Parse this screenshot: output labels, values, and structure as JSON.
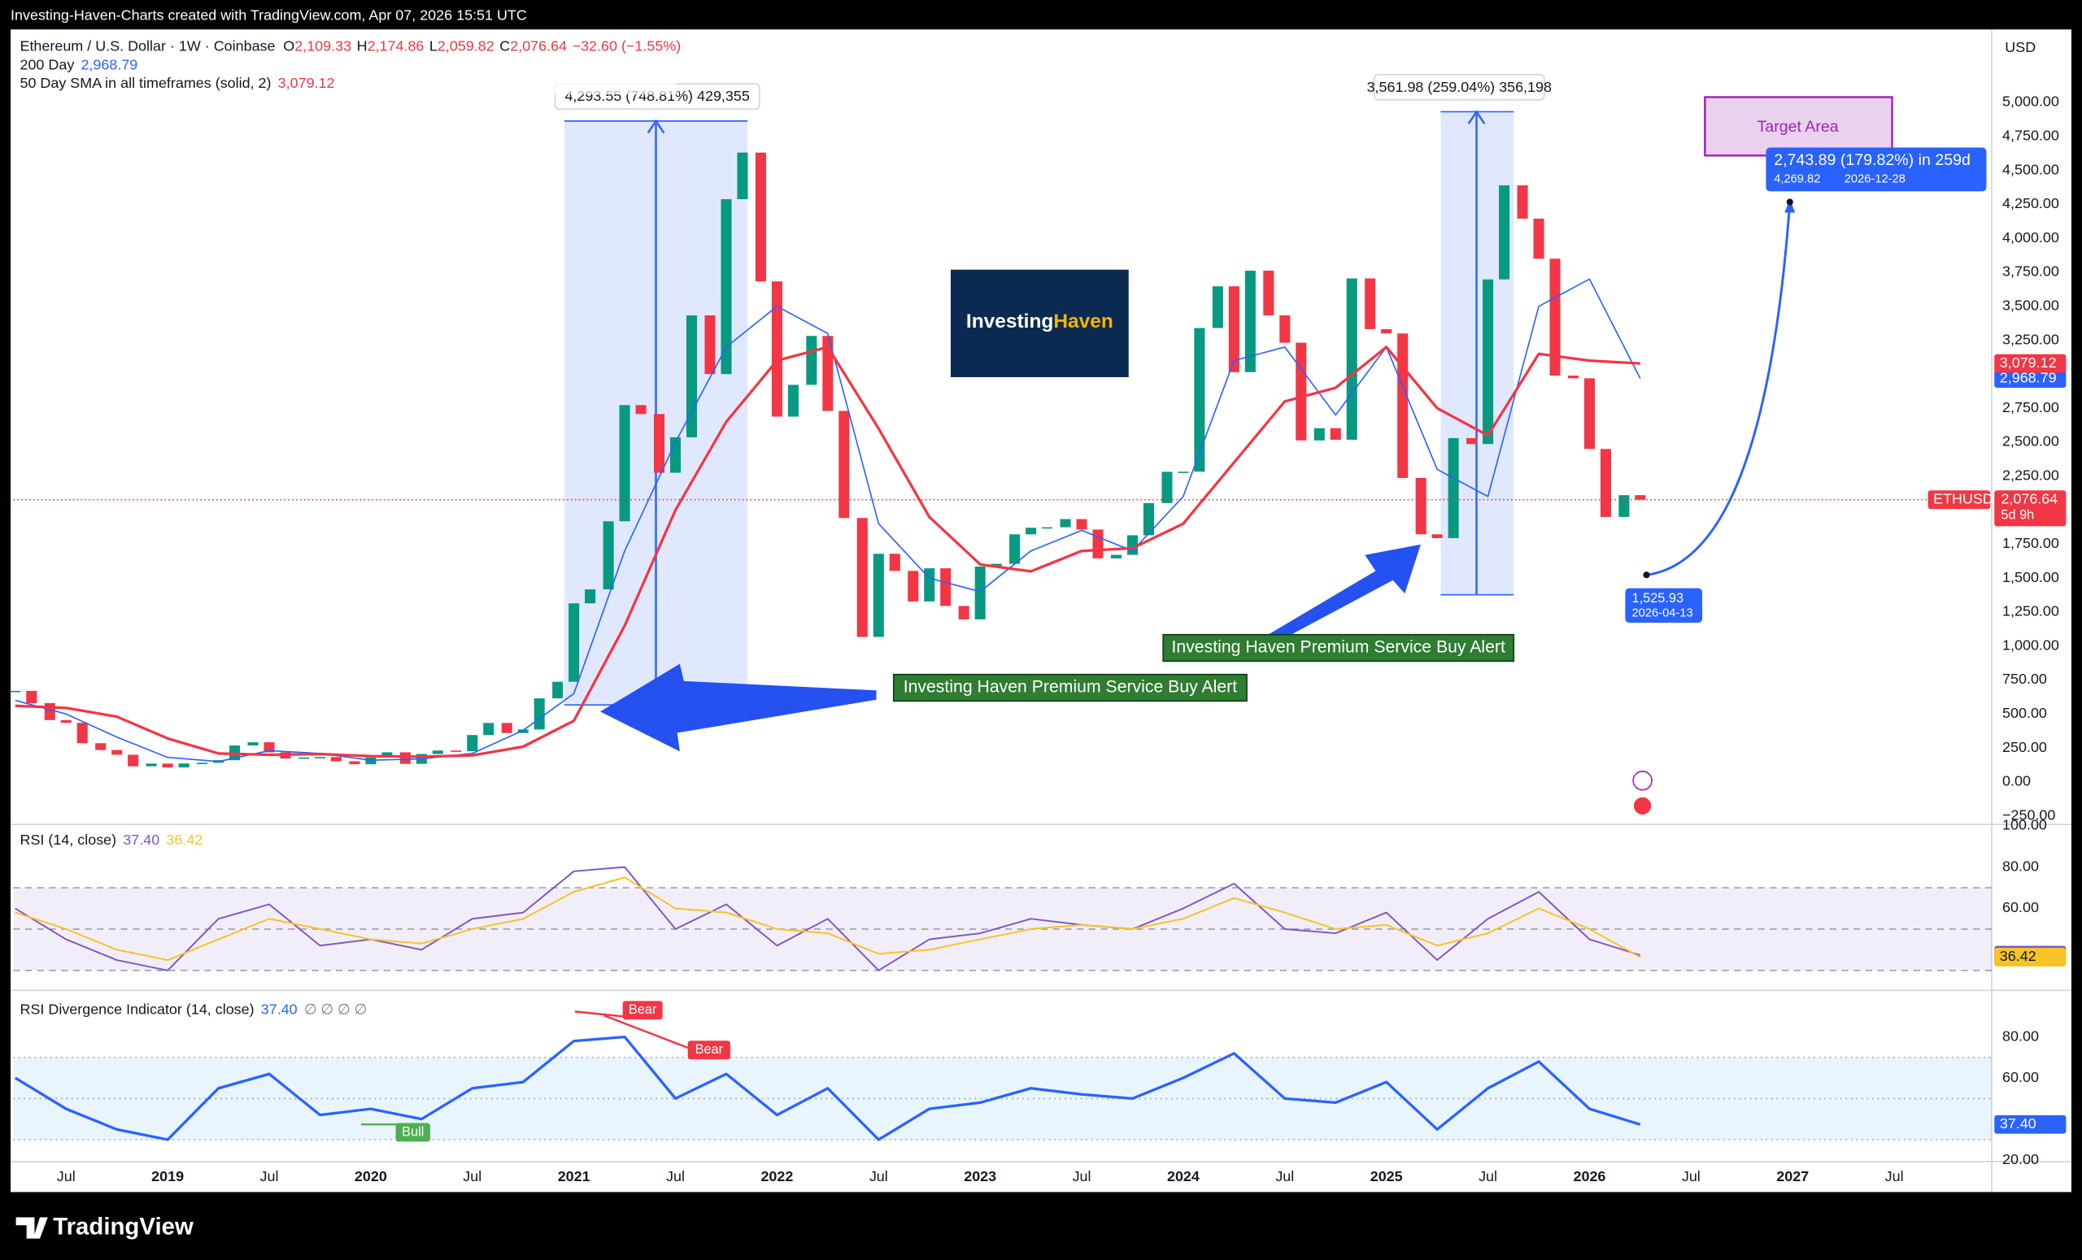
{
  "header": {
    "attribution": "Investing-Haven-Charts created with TradingView.com, Apr 07, 2026 15:51 UTC",
    "brand": "TradingView",
    "logo_1": "Investing",
    "logo_2": "Haven"
  },
  "chart_data": [
    {
      "type": "candle",
      "title": "Ethereum / U.S. Dollar · 1W · Coinbase",
      "open_label": "O",
      "open": "2,109.33",
      "high_label": "H",
      "high": "2,174.86",
      "low_label": "L",
      "low": "2,059.82",
      "close_label": "C",
      "close": "2,076.64",
      "change": "−32.60 (−1.55%)",
      "currency": "USD",
      "xlim": [
        2018.24,
        2027.98
      ],
      "xticks": [
        {
          "value": 2018.5,
          "label": "Jul"
        },
        2019,
        {
          "value": 2019.5,
          "label": "Jul"
        },
        2020,
        {
          "value": 2020.5,
          "label": "Jul"
        },
        2021,
        {
          "value": 2021.5,
          "label": "Jul"
        },
        2022,
        {
          "value": 2022.5,
          "label": "Jul"
        },
        2023,
        {
          "value": 2023.5,
          "label": "Jul"
        },
        2024,
        {
          "value": 2024.5,
          "label": "Jul"
        },
        2025,
        {
          "value": 2025.5,
          "label": "Jul"
        },
        2026,
        {
          "value": 2026.5,
          "label": "Jul"
        },
        2027,
        {
          "value": 2027.5,
          "label": "Jul"
        }
      ],
      "ylim": [
        -303,
        5537
      ],
      "yticks": [
        {
          "value": -250,
          "label": "−250.00"
        },
        {
          "value": 0,
          "label": "0.00"
        },
        {
          "value": 250,
          "label": "250.00"
        },
        {
          "value": 500,
          "label": "500.00"
        },
        {
          "value": 750,
          "label": "750.00"
        },
        {
          "value": 1000,
          "label": "1,000.00"
        },
        {
          "value": 1250,
          "label": "1,250.00"
        },
        {
          "value": 1500,
          "label": "1,500.00"
        },
        {
          "value": 1750,
          "label": "1,750.00"
        },
        {
          "value": 2000,
          "label": "2,000.00"
        },
        {
          "value": 2250,
          "label": "2,250.00"
        },
        {
          "value": 2500,
          "label": "2,500.00"
        },
        {
          "value": 2750,
          "label": "2,750.00"
        },
        {
          "value": 3000,
          "label": "3,000.00"
        },
        {
          "value": 3250,
          "label": "3,250.00"
        },
        {
          "value": 3500,
          "label": "3,500.00"
        },
        {
          "value": 3750,
          "label": "3,750.00"
        },
        {
          "value": 4000,
          "label": "4,000.00"
        },
        {
          "value": 4250,
          "label": "4,250.00"
        },
        {
          "value": 4500,
          "label": "4,500.00"
        },
        {
          "value": 4750,
          "label": "4,750.00"
        },
        {
          "value": 5000,
          "label": "5,000.00"
        }
      ],
      "series": [
        {
          "name": "ETHUSD",
          "up_color": "#089981",
          "down_color": "#f23645",
          "last_label": "2,076.64",
          "countdown": "5d 9h",
          "x": [
            2018.25,
            2018.33,
            2018.42,
            2018.5,
            2018.58,
            2018.67,
            2018.75,
            2018.83,
            2018.92,
            2019.0,
            2019.08,
            2019.17,
            2019.25,
            2019.33,
            2019.42,
            2019.5,
            2019.58,
            2019.67,
            2019.75,
            2019.83,
            2019.92,
            2020.0,
            2020.08,
            2020.17,
            2020.25,
            2020.33,
            2020.42,
            2020.5,
            2020.58,
            2020.67,
            2020.75,
            2020.83,
            2020.92,
            2021.0,
            2021.08,
            2021.17,
            2021.25,
            2021.33,
            2021.42,
            2021.5,
            2021.58,
            2021.67,
            2021.75,
            2021.83,
            2021.92,
            2022.0,
            2022.08,
            2022.17,
            2022.25,
            2022.33,
            2022.42,
            2022.5,
            2022.58,
            2022.67,
            2022.75,
            2022.83,
            2022.92,
            2023.0,
            2023.08,
            2023.17,
            2023.25,
            2023.33,
            2023.42,
            2023.5,
            2023.58,
            2023.67,
            2023.75,
            2023.83,
            2023.92,
            2024.0,
            2024.08,
            2024.17,
            2024.25,
            2024.33,
            2024.42,
            2024.5,
            2024.58,
            2024.67,
            2024.75,
            2024.83,
            2024.92,
            2025.0,
            2025.08,
            2025.17,
            2025.25,
            2025.33,
            2025.42,
            2025.5,
            2025.58,
            2025.67,
            2025.75,
            2025.83,
            2025.92,
            2026.0,
            2026.08,
            2026.17,
            2026.25
          ],
          "values": [
            670,
            580,
            455,
            435,
            285,
            235,
            200,
            115,
            135,
            107,
            136,
            141,
            160,
            268,
            292,
            218,
            172,
            180,
            183,
            152,
            130,
            180,
            218,
            133,
            206,
            231,
            226,
            345,
            434,
            360,
            386,
            615,
            737,
            1314,
            1417,
            1918,
            2773,
            2707,
            2275,
            2536,
            3433,
            3001,
            4288,
            4631,
            3683,
            2688,
            2922,
            3282,
            2730,
            1942,
            1067,
            1679,
            1553,
            1328,
            1572,
            1295,
            1196,
            1585,
            1605,
            1822,
            1870,
            1874,
            1934,
            1857,
            1645,
            1671,
            1815,
            2052,
            2282,
            2283,
            3340,
            3647,
            3015,
            3762,
            3433,
            3232,
            2513,
            2603,
            2518,
            3705,
            3332,
            3300,
            2237,
            1822,
            1794,
            2530,
            2486,
            3698,
            4390,
            4145,
            3850,
            2990,
            2970,
            2450,
            1950,
            2110,
            2076.64
          ]
        },
        {
          "name": "200 Day",
          "color": "#2962ff",
          "last_label": "2,968.79",
          "x": [
            2018.25,
            2018.5,
            2018.75,
            2019.0,
            2019.25,
            2019.5,
            2019.75,
            2020.0,
            2020.25,
            2020.5,
            2020.75,
            2021.0,
            2021.25,
            2021.5,
            2021.75,
            2022.0,
            2022.25,
            2022.5,
            2022.75,
            2023.0,
            2023.25,
            2023.5,
            2023.75,
            2024.0,
            2024.25,
            2024.5,
            2024.75,
            2025.0,
            2025.25,
            2025.5,
            2025.75,
            2026.0,
            2026.25
          ],
          "values": [
            600,
            500,
            330,
            180,
            150,
            230,
            210,
            160,
            170,
            210,
            380,
            650,
            1700,
            2500,
            3200,
            3500,
            3300,
            1900,
            1500,
            1400,
            1700,
            1850,
            1700,
            2100,
            3100,
            3200,
            2700,
            3200,
            2300,
            2100,
            3500,
            3700,
            2968.79
          ]
        },
        {
          "name": "50 Day SMA in all timeframes (solid, 2)",
          "color": "#f23645",
          "last_label": "3,079.12",
          "x": [
            2018.25,
            2018.5,
            2018.75,
            2019.0,
            2019.25,
            2019.5,
            2019.75,
            2020.0,
            2020.25,
            2020.5,
            2020.75,
            2021.0,
            2021.25,
            2021.5,
            2021.75,
            2022.0,
            2022.25,
            2022.5,
            2022.75,
            2023.0,
            2023.25,
            2023.5,
            2023.75,
            2024.0,
            2024.25,
            2024.5,
            2024.75,
            2025.0,
            2025.25,
            2025.5,
            2025.75,
            2026.0,
            2026.25
          ],
          "values": [
            560,
            545,
            480,
            320,
            210,
            200,
            205,
            190,
            185,
            195,
            260,
            450,
            1150,
            2000,
            2650,
            3100,
            3200,
            2600,
            1950,
            1600,
            1550,
            1700,
            1720,
            1900,
            2350,
            2800,
            2900,
            3200,
            2750,
            2550,
            3150,
            3100,
            3079.12
          ]
        }
      ],
      "annotations": {
        "gain_1": "4,293.55 (748.81%) 429,355",
        "gain_2": "3,561.98 (259.04%) 356,198",
        "target": "Target Area",
        "projection": "2,743.89 (179.82%) in 259d",
        "projection_price": "4,269.82",
        "projection_date": "2026-12-28",
        "start_price": "1,525.93",
        "start_date": "2026-04-13",
        "buy_alert_1": "Investing Haven Premium Service Buy Alert",
        "buy_alert_2": "Investing Haven Premium Service Buy Alert"
      }
    },
    {
      "type": "line",
      "title": "RSI (14, close)",
      "ylim": [
        21,
        100
      ],
      "yticks": [
        {
          "value": 100,
          "label": "100.00"
        },
        {
          "value": 80,
          "label": "80.00"
        },
        {
          "value": 60,
          "label": "60.00"
        }
      ],
      "levels": [
        70,
        50,
        30
      ],
      "band_color": "#7e57c2",
      "series": [
        {
          "color": "#7e57c2",
          "last_label": "37.40",
          "x": [
            2018.25,
            2018.5,
            2018.75,
            2019.0,
            2019.25,
            2019.5,
            2019.75,
            2020.0,
            2020.25,
            2020.5,
            2020.75,
            2021.0,
            2021.25,
            2021.5,
            2021.75,
            2022.0,
            2022.25,
            2022.5,
            2022.75,
            2023.0,
            2023.25,
            2023.5,
            2023.75,
            2024.0,
            2024.25,
            2024.5,
            2024.75,
            2025.0,
            2025.25,
            2025.5,
            2025.75,
            2026.0,
            2026.25
          ],
          "values": [
            60,
            45,
            35,
            30,
            55,
            62,
            42,
            45,
            40,
            55,
            58,
            78,
            80,
            50,
            62,
            42,
            55,
            30,
            45,
            48,
            55,
            52,
            50,
            60,
            72,
            50,
            48,
            58,
            35,
            55,
            68,
            45,
            37.4
          ]
        },
        {
          "color": "#f7c325",
          "last_label": "36.42",
          "x": [
            2018.25,
            2018.5,
            2018.75,
            2019.0,
            2019.25,
            2019.5,
            2019.75,
            2020.0,
            2020.25,
            2020.5,
            2020.75,
            2021.0,
            2021.25,
            2021.5,
            2021.75,
            2022.0,
            2022.25,
            2022.5,
            2022.75,
            2023.0,
            2023.25,
            2023.5,
            2023.75,
            2024.0,
            2024.25,
            2024.5,
            2024.75,
            2025.0,
            2025.25,
            2025.5,
            2025.75,
            2026.0,
            2026.25
          ],
          "values": [
            58,
            50,
            40,
            35,
            45,
            55,
            50,
            45,
            43,
            50,
            55,
            68,
            75,
            60,
            58,
            50,
            48,
            38,
            40,
            45,
            50,
            52,
            50,
            55,
            65,
            58,
            50,
            52,
            42,
            48,
            60,
            50,
            36.42
          ]
        }
      ]
    },
    {
      "type": "line",
      "title": "RSI Divergence Indicator (14, close)",
      "flags": "∅ ∅ ∅ ∅",
      "ylim": [
        20,
        102
      ],
      "yticks": [
        {
          "value": 80,
          "label": "80.00"
        },
        {
          "value": 60,
          "label": "60.00"
        },
        {
          "value": 20,
          "label": "20.00"
        }
      ],
      "levels": [
        70,
        50,
        30
      ],
      "band_color": "#2196f3",
      "signals": {
        "bull": "Bull",
        "bear_1": "Bear",
        "bear_2": "Bear"
      },
      "series": [
        {
          "color": "#2962ff",
          "last_label": "37.40",
          "x": [
            2018.25,
            2018.5,
            2018.75,
            2019.0,
            2019.25,
            2019.5,
            2019.75,
            2020.0,
            2020.25,
            2020.5,
            2020.75,
            2021.0,
            2021.25,
            2021.5,
            2021.75,
            2022.0,
            2022.25,
            2022.5,
            2022.75,
            2023.0,
            2023.25,
            2023.5,
            2023.75,
            2024.0,
            2024.25,
            2024.5,
            2024.75,
            2025.0,
            2025.25,
            2025.5,
            2025.75,
            2026.0,
            2026.25
          ],
          "values": [
            60,
            45,
            35,
            30,
            55,
            62,
            42,
            45,
            40,
            55,
            58,
            78,
            80,
            50,
            62,
            42,
            55,
            30,
            45,
            48,
            55,
            52,
            50,
            60,
            72,
            50,
            48,
            58,
            35,
            55,
            68,
            45,
            37.4
          ]
        }
      ]
    }
  ]
}
